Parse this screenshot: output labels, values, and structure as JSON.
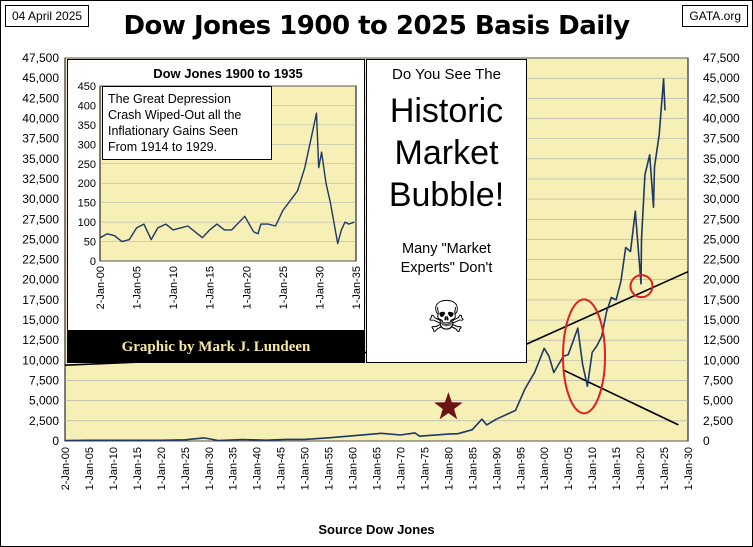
{
  "header": {
    "date": "04 April 2025",
    "site": "GATA.org",
    "title": "Dow Jones 1900 to 2025 Basis Daily"
  },
  "colors": {
    "plot_bg": "#f6efb6",
    "line": "#1f3864",
    "grid": "#aaaaaa",
    "highlight": "#e02020",
    "star": "#6b1414"
  },
  "chart_data": [
    {
      "type": "line",
      "title": "Dow Jones 1900 to 2025 Basis Daily",
      "xlabel": "Source Dow Jones",
      "ylim": [
        0,
        47500
      ],
      "xlim": [
        1900,
        2030
      ],
      "y_ticks": [
        "0",
        "2,500",
        "5,000",
        "7,500",
        "10,000",
        "12,500",
        "15,000",
        "17,500",
        "20,000",
        "22,500",
        "25,000",
        "27,500",
        "30,000",
        "32,500",
        "35,000",
        "37,500",
        "40,000",
        "42,500",
        "45,000",
        "47,500"
      ],
      "y_tick_values": [
        0,
        2500,
        5000,
        7500,
        10000,
        12500,
        15000,
        17500,
        20000,
        22500,
        25000,
        27500,
        30000,
        32500,
        35000,
        37500,
        40000,
        42500,
        45000,
        47500
      ],
      "x_ticks": [
        "2-Jan-00",
        "1-Jan-05",
        "1-Jan-10",
        "1-Jan-15",
        "1-Jan-20",
        "1-Jan-25",
        "1-Jan-30",
        "1-Jan-35",
        "1-Jan-40",
        "1-Jan-45",
        "1-Jan-50",
        "1-Jan-55",
        "1-Jan-60",
        "1-Jan-65",
        "1-Jan-70",
        "1-Jan-75",
        "1-Jan-80",
        "1-Jan-85",
        "1-Jan-90",
        "1-Jan-95",
        "1-Jan-00",
        "1-Jan-05",
        "1-Jan-10",
        "1-Jan-15",
        "1-Jan-20",
        "1-Jan-25",
        "1-Jan-30"
      ],
      "x_tick_years": [
        1900,
        1905,
        1910,
        1915,
        1920,
        1925,
        1930,
        1935,
        1940,
        1945,
        1950,
        1955,
        1960,
        1965,
        1970,
        1975,
        1980,
        1985,
        1990,
        1995,
        2000,
        2005,
        2010,
        2015,
        2020,
        2025,
        2030
      ],
      "grid": true,
      "series": [
        {
          "x": [
            1900,
            1905,
            1910,
            1915,
            1920,
            1925,
            1929,
            1932,
            1937,
            1942,
            1946,
            1950,
            1955,
            1960,
            1966,
            1970,
            1973,
            1974,
            1980,
            1982,
            1985,
            1987,
            1988,
            1990,
            1994,
            1996,
            1998,
            2000,
            2001,
            2002,
            2003,
            2004,
            2005,
            2007,
            2008,
            2009,
            2010,
            2011,
            2012,
            2013,
            2014,
            2015,
            2016,
            2017,
            2018,
            2019,
            2020.2,
            2020.3,
            2021,
            2022,
            2022.8,
            2023,
            2024,
            2024.9,
            2025.2
          ],
          "y": [
            60,
            90,
            90,
            90,
            90,
            150,
            380,
            60,
            180,
            100,
            200,
            200,
            400,
            650,
            950,
            750,
            1000,
            600,
            850,
            900,
            1400,
            2700,
            2000,
            2700,
            3800,
            6500,
            8500,
            11500,
            10500,
            8500,
            9500,
            10500,
            10700,
            14000,
            9500,
            6800,
            11000,
            11800,
            13000,
            16000,
            17800,
            17500,
            19800,
            24000,
            23500,
            28500,
            19500,
            25000,
            33000,
            35500,
            29000,
            34000,
            38000,
            44900,
            41000
          ]
        }
      ]
    },
    {
      "type": "line",
      "title": "Dow Jones 1900 to 1935",
      "ylim": [
        0,
        450
      ],
      "xlim": [
        1900,
        1935
      ],
      "y_ticks": [
        "0",
        "50",
        "100",
        "150",
        "200",
        "250",
        "300",
        "350",
        "400",
        "450"
      ],
      "y_tick_values": [
        0,
        50,
        100,
        150,
        200,
        250,
        300,
        350,
        400,
        450
      ],
      "x_ticks": [
        "2-Jan-00",
        "1-Jan-05",
        "1-Jan-10",
        "1-Jan-15",
        "1-Jan-20",
        "1-Jan-25",
        "1-Jan-30",
        "1-Jan-35"
      ],
      "x_tick_years": [
        1900,
        1905,
        1910,
        1915,
        1920,
        1925,
        1930,
        1935
      ],
      "series": [
        {
          "x": [
            1900,
            1901,
            1902,
            1903,
            1904,
            1905,
            1906,
            1907,
            1907.9,
            1909,
            1910,
            1911,
            1912,
            1913,
            1914,
            1915,
            1916,
            1917,
            1918,
            1919.8,
            1921,
            1921.6,
            1922,
            1923,
            1924,
            1925,
            1926,
            1927,
            1928,
            1929.6,
            1929.9,
            1930.3,
            1930.9,
            1931.5,
            1932.5,
            1933,
            1933.5,
            1934,
            1934.8
          ],
          "y": [
            60,
            70,
            65,
            50,
            55,
            85,
            95,
            55,
            85,
            95,
            80,
            85,
            90,
            75,
            60,
            80,
            95,
            80,
            80,
            115,
            75,
            70,
            95,
            95,
            90,
            130,
            155,
            180,
            240,
            380,
            240,
            280,
            200,
            150,
            45,
            80,
            100,
            95,
            100
          ]
        }
      ]
    }
  ],
  "inset": {
    "annotation": "The Great Depression Crash Wiped-Out all the Inflationary Gains Seen From 1914  to 1929."
  },
  "credit": "Graphic by Mark J. Lundeen",
  "callout": {
    "line1": "Do You See The",
    "line2": "Historic",
    "line3": "Market",
    "line4": "Bubble!",
    "line5": "Many \"Market",
    "line6": "Experts\"  Don't",
    "icon": "skull-crossbones-icon"
  },
  "footer": {
    "source": "Source Dow Jones"
  }
}
